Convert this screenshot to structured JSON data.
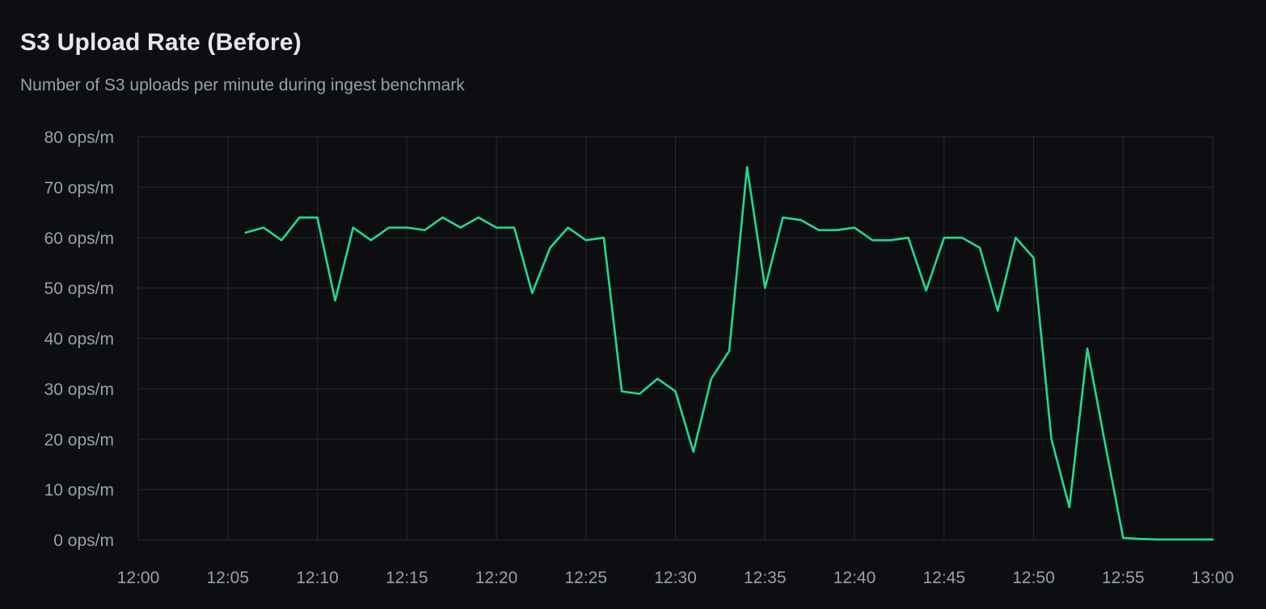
{
  "panel": {
    "title": "S3 Upload Rate (Before)",
    "subtitle": "Number of S3 uploads per minute during ingest benchmark"
  },
  "style": {
    "background": "#0d0e11",
    "grid_color": "#26292f",
    "tick_text_color": "#9aa0a7",
    "title_color": "#e5e7e9",
    "line_color": "#1edc8d"
  },
  "chart_data": {
    "type": "line",
    "title": "S3 Upload Rate (Before)",
    "subtitle": "Number of S3 uploads per minute during ingest benchmark",
    "unit": "ops/m",
    "grid": true,
    "legend": "none",
    "x_axis": {
      "range_minutes": [
        0,
        60
      ],
      "tick_minutes": [
        0,
        5,
        10,
        15,
        20,
        25,
        30,
        35,
        40,
        45,
        50,
        55,
        60
      ],
      "tick_labels": [
        "12:00",
        "12:05",
        "12:10",
        "12:15",
        "12:20",
        "12:25",
        "12:30",
        "12:35",
        "12:40",
        "12:45",
        "12:50",
        "12:55",
        "13:00"
      ]
    },
    "y_axis": {
      "range": [
        0,
        80
      ],
      "ticks": [
        0,
        10,
        20,
        30,
        40,
        50,
        60,
        70,
        80
      ],
      "tick_labels": [
        "0 ops/m",
        "10 ops/m",
        "20 ops/m",
        "30 ops/m",
        "40 ops/m",
        "50 ops/m",
        "60 ops/m",
        "70 ops/m",
        "80 ops/m"
      ]
    },
    "series": [
      {
        "name": "s3-upload-rate",
        "color": "#1edc8d",
        "start_time": "12:06",
        "interval_minutes": 1,
        "minutes": [
          6,
          7,
          8,
          9,
          10,
          11,
          12,
          13,
          14,
          15,
          16,
          17,
          18,
          19,
          20,
          21,
          22,
          23,
          24,
          25,
          26,
          27,
          28,
          29,
          30,
          31,
          32,
          33,
          34,
          35,
          36,
          37,
          38,
          39,
          40,
          41,
          42,
          43,
          44,
          45,
          46,
          47,
          48,
          49,
          50,
          51,
          52,
          53,
          54,
          55,
          56,
          57,
          58,
          59,
          60
        ],
        "values": [
          61,
          62,
          59.5,
          64,
          64,
          47.5,
          62,
          59.5,
          62,
          62,
          61.5,
          64,
          62,
          64,
          62,
          62,
          49,
          58,
          62,
          59.5,
          60,
          29.5,
          29,
          32,
          29.5,
          17.5,
          32,
          37.5,
          74,
          50,
          64,
          63.5,
          61.5,
          61.5,
          62,
          59.5,
          59.5,
          60,
          49.5,
          60,
          60,
          58,
          45.5,
          60,
          56,
          20,
          6.5,
          38,
          19,
          0.4,
          0.2,
          0.1,
          0.1,
          0.1,
          0.1
        ]
      }
    ]
  }
}
